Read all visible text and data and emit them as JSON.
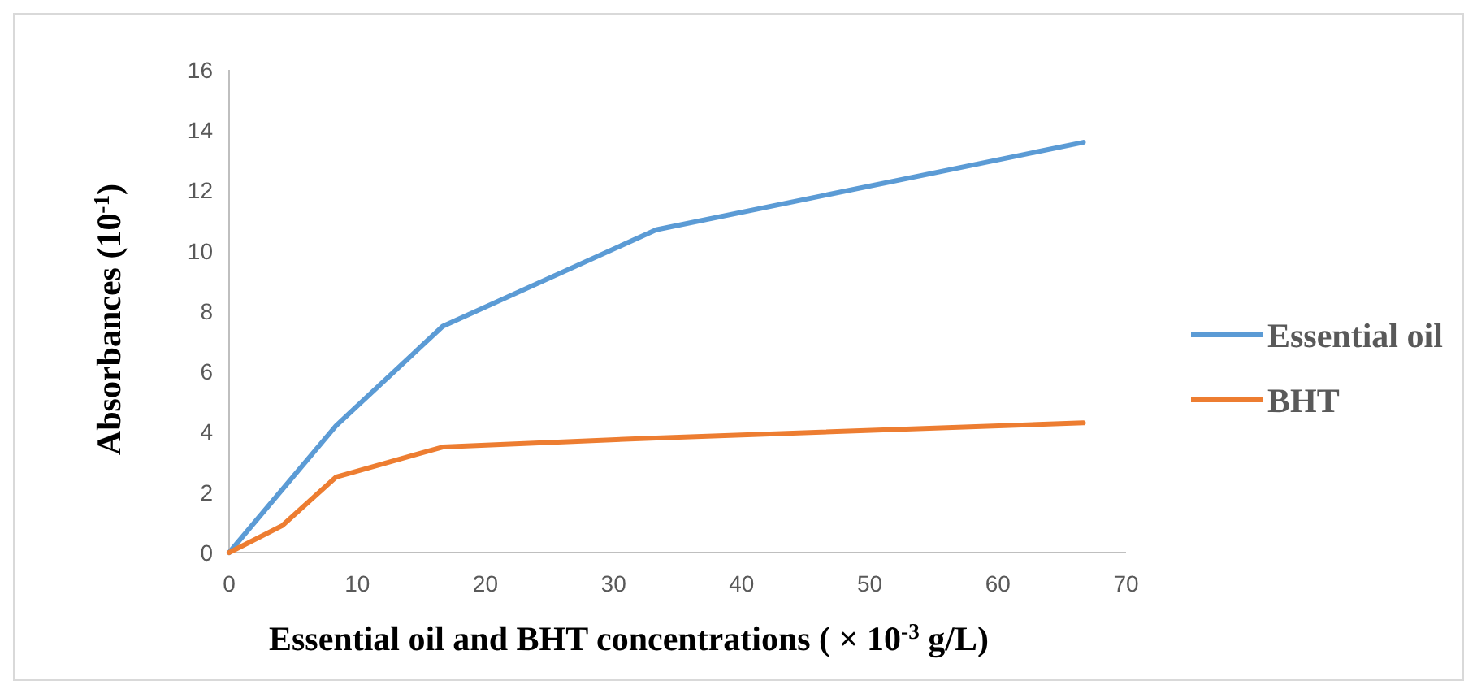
{
  "chart_data": {
    "type": "line",
    "xlabel": "Essential oil and BHT concentrations ( × 10$^{-3}$ g/L)",
    "ylabel": "Absorbances (10$^{-1}$)",
    "x": [
      0,
      4.17,
      8.33,
      16.67,
      33.33,
      66.67
    ],
    "series": [
      {
        "name": "Essential oil",
        "color": "#5b9bd5",
        "values": [
          0,
          2.1,
          4.2,
          7.5,
          10.7,
          13.6
        ]
      },
      {
        "name": "BHT",
        "color": "#ed7d31",
        "values": [
          0,
          0.9,
          2.5,
          3.5,
          3.8,
          4.3
        ]
      }
    ],
    "xlim": [
      0,
      70
    ],
    "xticks": [
      0,
      10,
      20,
      30,
      40,
      50,
      60,
      70
    ],
    "ylim": [
      0,
      16
    ],
    "yticks": [
      0,
      2,
      4,
      6,
      8,
      10,
      12,
      14,
      16
    ],
    "grid": false,
    "legend": "right",
    "marker": "none",
    "line_style": "solid"
  }
}
